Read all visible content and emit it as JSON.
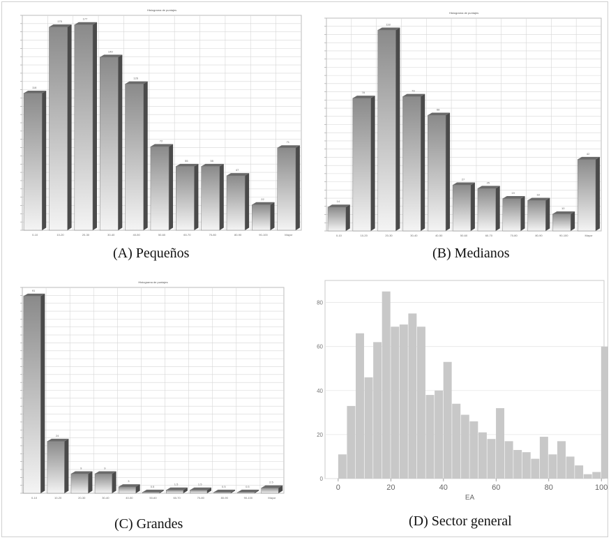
{
  "captions": {
    "a": "(A) Pequeños",
    "b": "(B) Medianos",
    "c": "(C) Grandes",
    "d": "(D) Sector general"
  },
  "colors": {
    "bar_light": "#f4f4f4",
    "bar_dark": "#8a8a8a",
    "bar_side": "#4a4a4a",
    "grid": "#d6d6d6",
    "hist_bar": "#c8c8c8",
    "hist_bg": "#ffffff"
  },
  "chart_data": [
    {
      "id": "a",
      "type": "bar",
      "title": "Histograma de puntajes",
      "categories": [
        "0-10",
        "10-20",
        "20-30",
        "30-40",
        "40-50",
        "50-60",
        "60-70",
        "70-80",
        "80-90",
        "90-100",
        "Mayor"
      ],
      "values": [
        118,
        175,
        177,
        149,
        126,
        72,
        55,
        55,
        47,
        22,
        71
      ],
      "ylim": [
        0,
        185
      ],
      "grid": true
    },
    {
      "id": "b",
      "type": "bar",
      "title": "Histograma de puntajes",
      "categories": [
        "0-10",
        "10-20",
        "20-30",
        "30-40",
        "40-50",
        "50-60",
        "60-70",
        "70-80",
        "80-90",
        "90-100",
        "Mayor"
      ],
      "values": [
        14,
        78,
        118,
        79,
        68,
        27,
        25,
        19,
        18,
        10,
        42
      ],
      "ylim": [
        0,
        125
      ],
      "grid": true
    },
    {
      "id": "c",
      "type": "bar",
      "title": "Histograma de puntajes",
      "categories": [
        "0-10",
        "10-20",
        "20-30",
        "30-40",
        "40-50",
        "50-60",
        "60-70",
        "70-80",
        "80-90",
        "90-100",
        "Mayor"
      ],
      "values": [
        91,
        24,
        9,
        9,
        3,
        0.5,
        1.5,
        1.5,
        0.5,
        0.5,
        2.5
      ],
      "ylim": [
        0,
        95
      ],
      "grid": true
    },
    {
      "id": "d",
      "type": "bar",
      "xlabel": "EA",
      "x_bin_width": 3.33,
      "x_start": 0,
      "values": [
        11,
        33,
        66,
        46,
        62,
        85,
        69,
        70,
        75,
        69,
        38,
        40,
        53,
        34,
        29,
        26,
        21,
        18,
        32,
        17,
        13,
        12,
        9,
        19,
        11,
        17,
        10,
        6,
        2,
        3,
        60
      ],
      "ylim": [
        0,
        90
      ],
      "xlim": [
        -5,
        101
      ],
      "xticks": [
        "0",
        "20",
        "40",
        "60",
        "80",
        "100"
      ],
      "yticks": [
        "0",
        "20",
        "40",
        "60",
        "80"
      ],
      "grid": true
    }
  ]
}
